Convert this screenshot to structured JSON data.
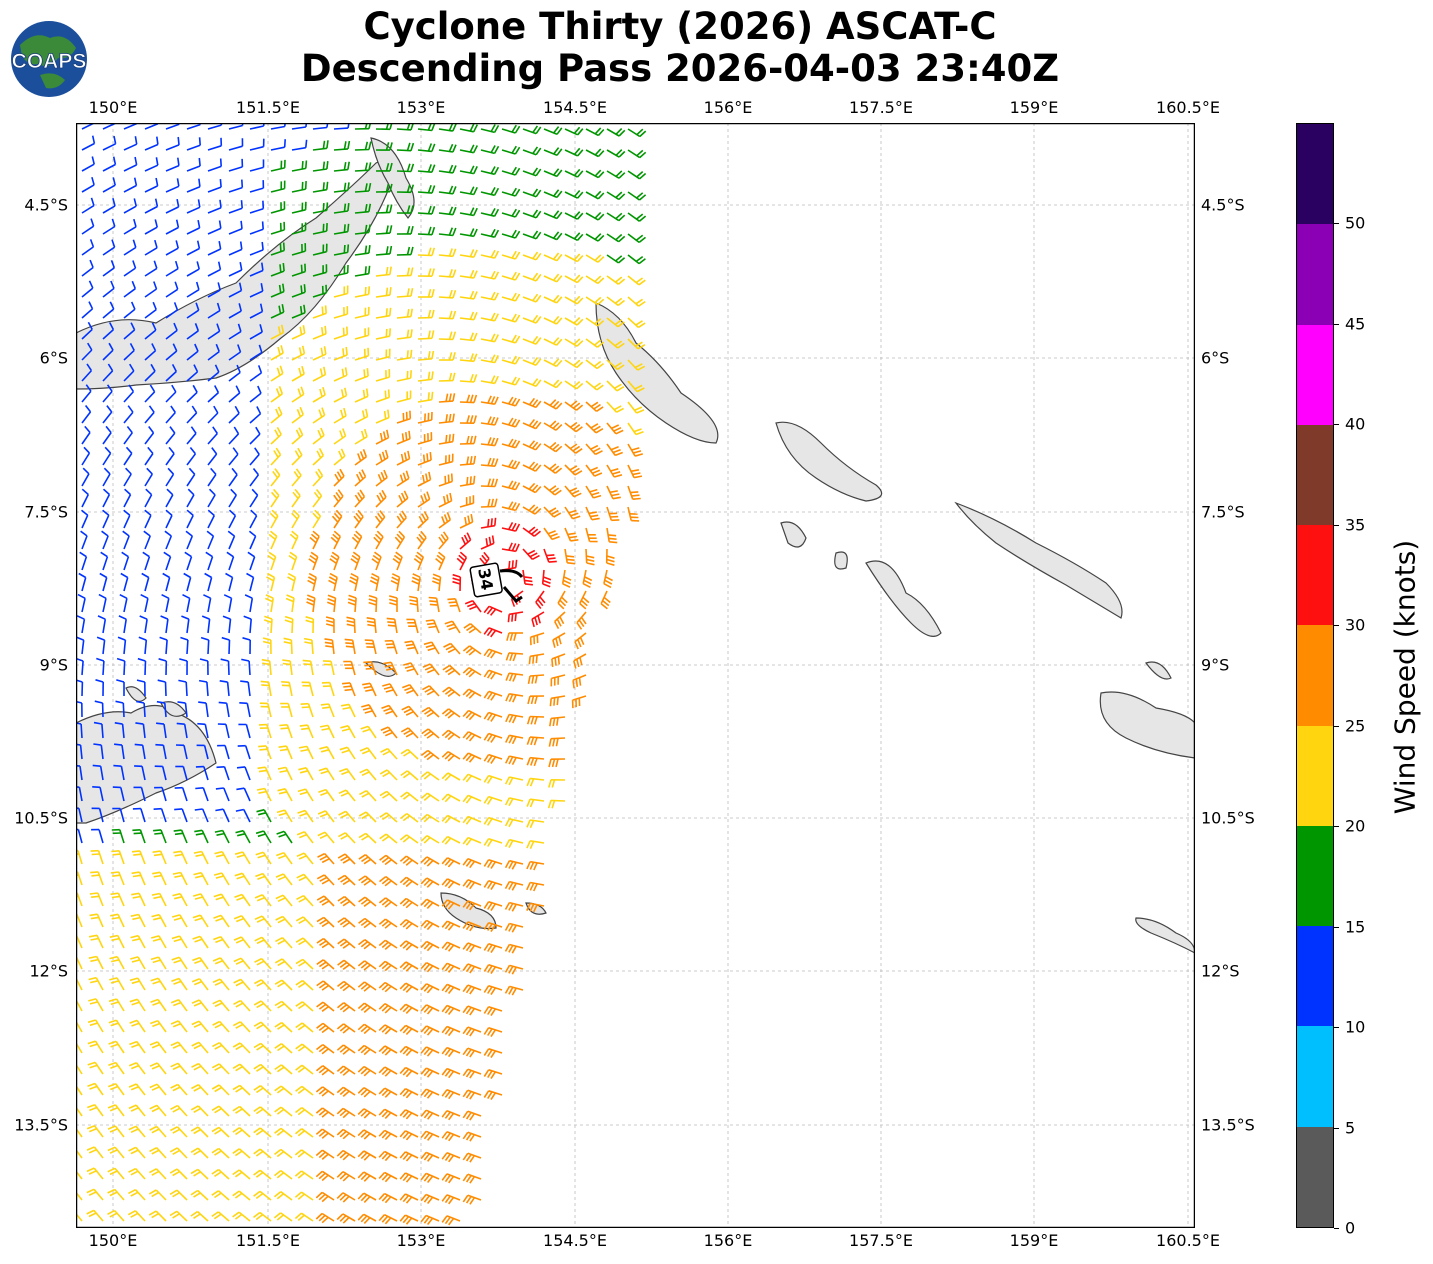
{
  "title": {
    "line1": "Cyclone Thirty (2026) ASCAT-C",
    "line2": "Descending Pass 2026-04-03 23:40Z"
  },
  "logo": {
    "text": "COAPS",
    "icon": "globe-logo"
  },
  "map": {
    "lon_labels": [
      "150°E",
      "151.5°E",
      "153°E",
      "154.5°E",
      "156°E",
      "157.5°E",
      "159°E",
      "160.5°E"
    ],
    "lat_labels": [
      "4.5°S",
      "6°S",
      "7.5°S",
      "9°S",
      "10.5°S",
      "12°S",
      "13.5°S"
    ],
    "storm_marker": "34"
  },
  "colorbar": {
    "label": "Wind Speed (knots)",
    "ticks": [
      "0",
      "5",
      "10",
      "15",
      "20",
      "25",
      "30",
      "35",
      "40",
      "45",
      "50"
    ],
    "colors": [
      "#5a5a5a",
      "#00bfff",
      "#0033ff",
      "#009600",
      "#ffd510",
      "#ff8c00",
      "#ff1010",
      "#7f3a2a",
      "#ff00ff",
      "#8b00b5",
      "#2a0060"
    ]
  }
}
